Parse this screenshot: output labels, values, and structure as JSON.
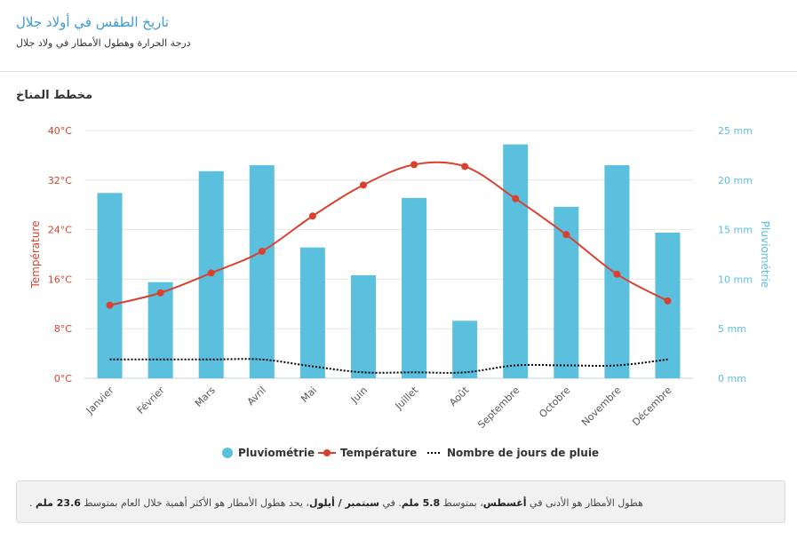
{
  "header": {
    "title": "تاريخ الطقس في أولاد جلال",
    "subtitle": "درجة الحرارة وهطول الأمطار في ولاد جلال"
  },
  "section_title": "مخطط المناخ",
  "note": {
    "p1": ". هطول الأمطار هو الأدنى في ",
    "b1": "أغسطس",
    "p2": "، بمتوسط ",
    "b2": "5.8 ملم",
    "p3": ". في ",
    "b3": "سبتمبر / أيلول",
    "p4": "، يحد هطول الأمطار هو الأكثر أهمية خلال العام بمتوسط ",
    "b4": "23.6 ملم"
  },
  "colors": {
    "bar": "#5bbfde",
    "temperature": "#d9412e",
    "rain_days": "#000000",
    "right_axis": "#5bbfde",
    "left_axis": "#d9412e"
  },
  "chart_data": {
    "type": "bar",
    "categories": [
      "Janvier",
      "Février",
      "Mars",
      "Avril",
      "Mai",
      "Juin",
      "Juillet",
      "Août",
      "Septembre",
      "Octobre",
      "Novembre",
      "Décembre"
    ],
    "series": [
      {
        "name": "Pluviométrie",
        "type": "bar",
        "axis": "right",
        "values": [
          18.7,
          9.7,
          20.9,
          21.5,
          13.2,
          10.4,
          18.2,
          5.8,
          23.6,
          17.3,
          21.5,
          14.7
        ]
      },
      {
        "name": "Température",
        "type": "line",
        "axis": "left",
        "values": [
          11.8,
          13.8,
          17.0,
          20.5,
          26.2,
          31.2,
          34.5,
          34.2,
          29.0,
          23.2,
          16.8,
          12.5
        ]
      },
      {
        "name": "Nombre de jours de pluie",
        "type": "line-dotted",
        "axis": "right",
        "values": [
          1.9,
          1.9,
          1.9,
          1.9,
          1.2,
          0.6,
          0.6,
          0.6,
          1.3,
          1.3,
          1.3,
          1.9
        ]
      }
    ],
    "left_axis": {
      "label": "Température",
      "ticks": [
        "0°C",
        "8°C",
        "16°C",
        "24°C",
        "32°C",
        "40°C"
      ],
      "range": [
        0,
        40
      ]
    },
    "right_axis": {
      "label": "Pluviométrie",
      "ticks": [
        "0 mm",
        "5 mm",
        "10 mm",
        "15 mm",
        "20 mm",
        "25 mm"
      ],
      "range": [
        0,
        25
      ]
    },
    "legend": [
      "Pluviométrie",
      "Température",
      "Nombre de jours de pluie"
    ],
    "legend_position": "bottom",
    "grid": true
  }
}
